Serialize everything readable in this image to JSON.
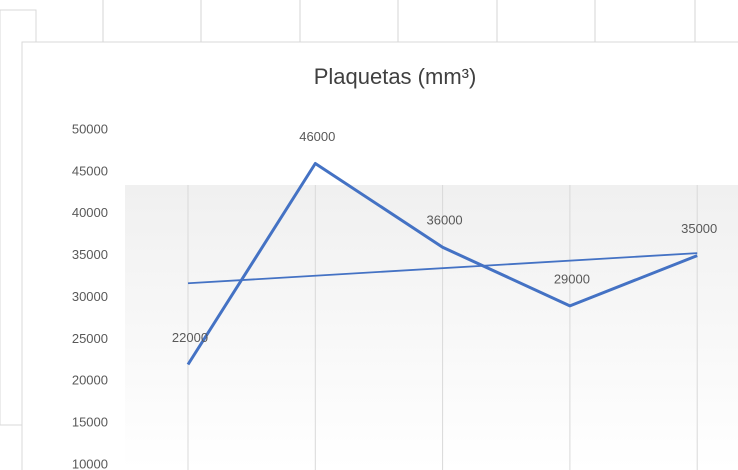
{
  "chart_data": {
    "type": "line",
    "title": "Plaquetas (mm³)",
    "categories": [
      null,
      null,
      null,
      null,
      null
    ],
    "series": [
      {
        "color": "#4472c4",
        "values": [
          22000,
          46000,
          36000,
          29000,
          35000
        ]
      }
    ],
    "trendline": {
      "color": "#4472c4",
      "values": [
        31700,
        35300
      ]
    },
    "ylim": [
      10000,
      50000
    ],
    "yticks": [
      10000,
      15000,
      20000,
      25000,
      30000,
      35000,
      40000,
      45000,
      50000
    ],
    "grid": "x"
  }
}
